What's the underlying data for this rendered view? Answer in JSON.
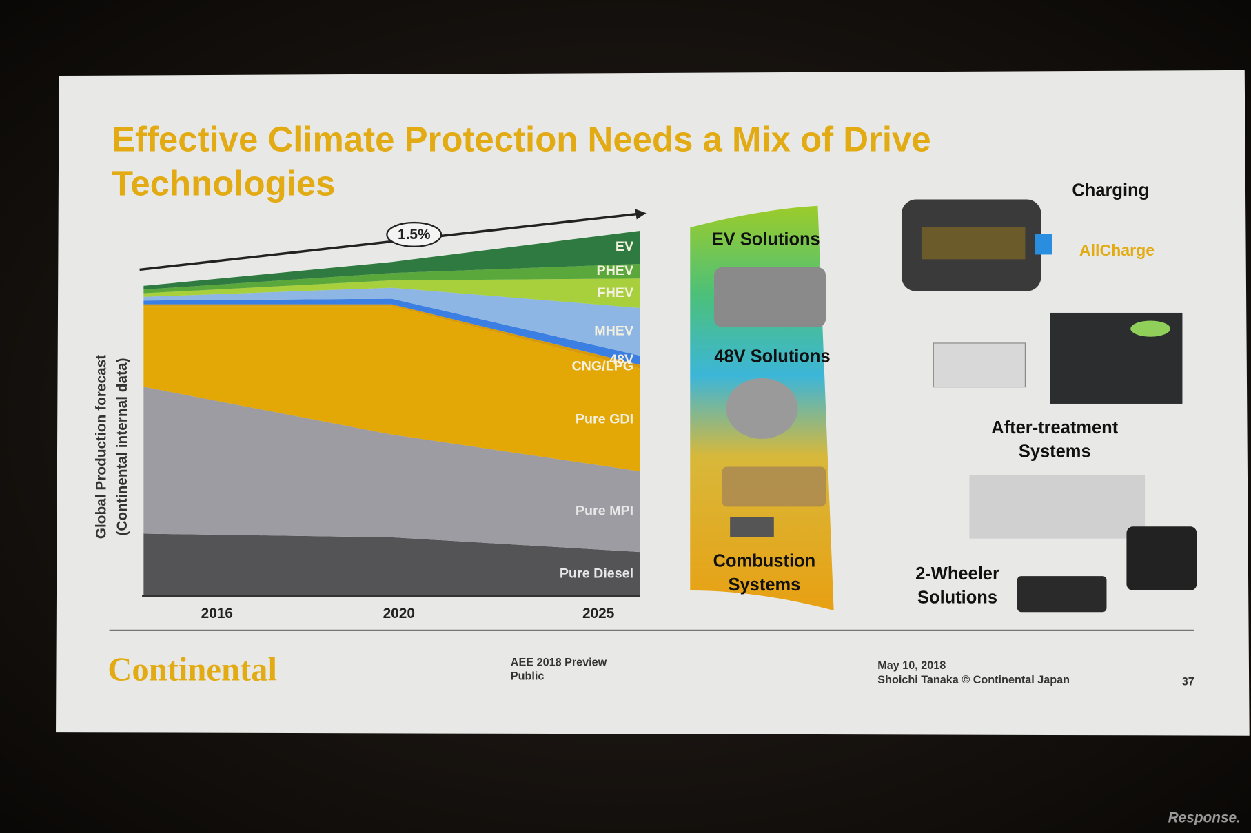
{
  "title": "Effective Climate Protection Needs a Mix of Drive Technologies",
  "chart_data": {
    "type": "stacked-area",
    "ylabel": [
      "Global  Production forecast",
      "(Continental internal data)"
    ],
    "annotation": "1.5%",
    "categories": [
      "2016",
      "2020",
      "2025"
    ],
    "ylim": [
      0,
      100
    ],
    "series": [
      {
        "name": "Pure Diesel",
        "color": "#545356",
        "values": [
          17,
          16,
          12
        ]
      },
      {
        "name": "Pure MPI",
        "color": "#9c9ca2",
        "values": [
          40,
          28,
          22
        ]
      },
      {
        "name": "Pure GDI",
        "color": "#e3a806",
        "values": [
          22,
          35,
          28
        ]
      },
      {
        "name": "CNG/LPG",
        "color": "#d99a0a",
        "values": [
          0.5,
          0.5,
          1
        ]
      },
      {
        "name": "48V",
        "color": "#3b7fe2",
        "values": [
          1,
          1.5,
          2.5
        ]
      },
      {
        "name": "MHEV",
        "color": "#8eb6e4",
        "values": [
          1,
          3,
          13
        ]
      },
      {
        "name": "FHEV",
        "color": "#a8cf3c",
        "values": [
          1,
          2,
          8
        ]
      },
      {
        "name": "PHEV",
        "color": "#5aa83c",
        "values": [
          1,
          2,
          4
        ]
      },
      {
        "name": "EV",
        "color": "#2f7a40",
        "values": [
          1,
          3,
          9
        ]
      }
    ]
  },
  "solutions": [
    "EV Solutions",
    "48V Solutions",
    "Combustion Systems"
  ],
  "right_panel": {
    "charging": "Charging",
    "allcharge": "AllCharge",
    "after_treatment": "After-treatment Systems",
    "two_wheeler": "2-Wheeler Solutions"
  },
  "footer": {
    "logo": "Continental",
    "event": "AEE 2018 Preview",
    "classification": "Public",
    "date": "May 10, 2018",
    "author": "Shoichi Tanaka © Continental Japan",
    "page": "37"
  },
  "watermark": "Response."
}
